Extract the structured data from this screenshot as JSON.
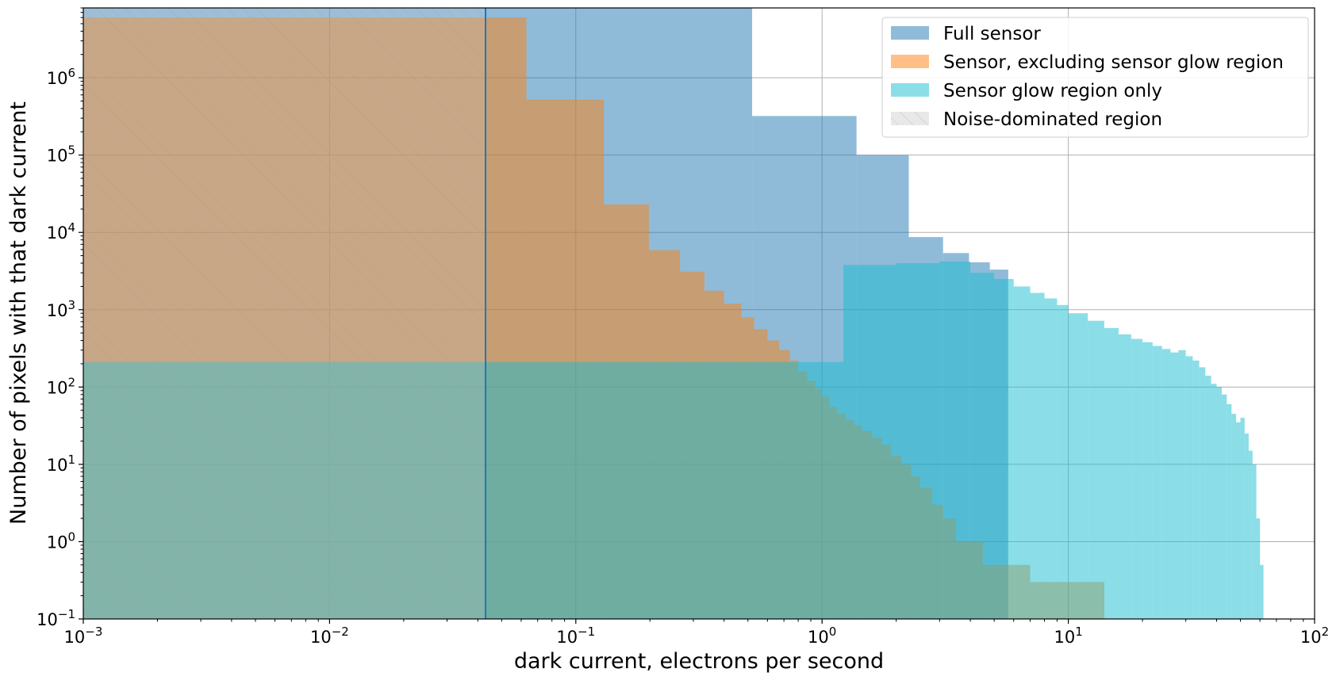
{
  "chart_data": {
    "type": "histogram",
    "x_scale": "log",
    "y_scale": "log",
    "xlim": [
      0.001,
      100
    ],
    "ylim": [
      0.1,
      8000000
    ],
    "xlabel": "dark current, electrons per second",
    "ylabel": "Number of pixels with that dark current",
    "grid": true,
    "legend_position": "top-right",
    "x_ticks": [
      {
        "value": 0.001,
        "base": "10",
        "exp": "−3"
      },
      {
        "value": 0.01,
        "base": "10",
        "exp": "−2"
      },
      {
        "value": 0.1,
        "base": "10",
        "exp": "−1"
      },
      {
        "value": 1,
        "base": "10",
        "exp": "0"
      },
      {
        "value": 10,
        "base": "10",
        "exp": "1"
      },
      {
        "value": 100,
        "base": "10",
        "exp": "2"
      }
    ],
    "y_ticks": [
      {
        "value": 0.1,
        "base": "10",
        "exp": "−1"
      },
      {
        "value": 1,
        "base": "10",
        "exp": "0"
      },
      {
        "value": 10,
        "base": "10",
        "exp": "1"
      },
      {
        "value": 100,
        "base": "10",
        "exp": "2"
      },
      {
        "value": 1000,
        "base": "10",
        "exp": "3"
      },
      {
        "value": 10000,
        "base": "10",
        "exp": "4"
      },
      {
        "value": 100000,
        "base": "10",
        "exp": "5"
      },
      {
        "value": 1000000,
        "base": "10",
        "exp": "6"
      }
    ],
    "threshold_line_x": 0.043,
    "series": [
      {
        "name": "Full sensor",
        "color": "#1f77b4",
        "opacity": 0.5,
        "bins": [
          {
            "x0": 0.001,
            "x1": 0.52,
            "y": 8000000
          },
          {
            "x0": 0.52,
            "x1": 1.38,
            "y": 320000
          },
          {
            "x0": 1.38,
            "x1": 2.25,
            "y": 100000
          },
          {
            "x0": 2.25,
            "x1": 3.1,
            "y": 8700
          },
          {
            "x0": 3.1,
            "x1": 3.95,
            "y": 5400
          },
          {
            "x0": 3.95,
            "x1": 4.8,
            "y": 4100
          },
          {
            "x0": 4.8,
            "x1": 5.7,
            "y": 3300
          }
        ]
      },
      {
        "name": "Sensor, excluding sensor glow region",
        "color": "#ff7f0e",
        "opacity": 0.5,
        "bins": [
          {
            "x0": 0.001,
            "x1": 0.063,
            "y": 6000000
          },
          {
            "x0": 0.063,
            "x1": 0.13,
            "y": 520000
          },
          {
            "x0": 0.13,
            "x1": 0.198,
            "y": 23000
          },
          {
            "x0": 0.198,
            "x1": 0.265,
            "y": 5900
          },
          {
            "x0": 0.265,
            "x1": 0.333,
            "y": 3100
          },
          {
            "x0": 0.333,
            "x1": 0.4,
            "y": 1760
          },
          {
            "x0": 0.4,
            "x1": 0.47,
            "y": 1200
          },
          {
            "x0": 0.47,
            "x1": 0.53,
            "y": 800
          },
          {
            "x0": 0.53,
            "x1": 0.6,
            "y": 560
          },
          {
            "x0": 0.6,
            "x1": 0.67,
            "y": 400
          },
          {
            "x0": 0.67,
            "x1": 0.74,
            "y": 300
          },
          {
            "x0": 0.74,
            "x1": 0.8,
            "y": 220
          },
          {
            "x0": 0.8,
            "x1": 0.87,
            "y": 160
          },
          {
            "x0": 0.87,
            "x1": 0.94,
            "y": 120
          },
          {
            "x0": 0.94,
            "x1": 1.0,
            "y": 95
          },
          {
            "x0": 1.0,
            "x1": 1.07,
            "y": 75
          },
          {
            "x0": 1.07,
            "x1": 1.15,
            "y": 55
          },
          {
            "x0": 1.15,
            "x1": 1.25,
            "y": 45
          },
          {
            "x0": 1.25,
            "x1": 1.35,
            "y": 38
          },
          {
            "x0": 1.35,
            "x1": 1.45,
            "y": 32
          },
          {
            "x0": 1.45,
            "x1": 1.6,
            "y": 27
          },
          {
            "x0": 1.6,
            "x1": 1.75,
            "y": 22
          },
          {
            "x0": 1.75,
            "x1": 1.9,
            "y": 18
          },
          {
            "x0": 1.9,
            "x1": 2.1,
            "y": 13
          },
          {
            "x0": 2.1,
            "x1": 2.3,
            "y": 10
          },
          {
            "x0": 2.3,
            "x1": 2.5,
            "y": 7
          },
          {
            "x0": 2.5,
            "x1": 2.8,
            "y": 5
          },
          {
            "x0": 2.8,
            "x1": 3.1,
            "y": 3
          },
          {
            "x0": 3.1,
            "x1": 3.5,
            "y": 2
          },
          {
            "x0": 3.5,
            "x1": 4.5,
            "y": 1
          },
          {
            "x0": 4.5,
            "x1": 7.0,
            "y": 0.5
          },
          {
            "x0": 7.0,
            "x1": 14.0,
            "y": 0.3
          }
        ]
      },
      {
        "name": "Sensor glow region only",
        "color": "#17becf",
        "opacity": 0.5,
        "bins": [
          {
            "x0": 0.001,
            "x1": 1.22,
            "y": 210
          },
          {
            "x0": 1.22,
            "x1": 2.0,
            "y": 3800
          },
          {
            "x0": 2.0,
            "x1": 3.0,
            "y": 4000
          },
          {
            "x0": 3.0,
            "x1": 4.0,
            "y": 4200
          },
          {
            "x0": 4.0,
            "x1": 5.0,
            "y": 3000
          },
          {
            "x0": 5.0,
            "x1": 6.0,
            "y": 2500
          },
          {
            "x0": 6.0,
            "x1": 7.0,
            "y": 2000
          },
          {
            "x0": 7.0,
            "x1": 8.0,
            "y": 1650
          },
          {
            "x0": 8.0,
            "x1": 9.0,
            "y": 1400
          },
          {
            "x0": 9.0,
            "x1": 10.0,
            "y": 1150
          },
          {
            "x0": 10.0,
            "x1": 12.0,
            "y": 900
          },
          {
            "x0": 12.0,
            "x1": 14.0,
            "y": 720
          },
          {
            "x0": 14.0,
            "x1": 16.0,
            "y": 580
          },
          {
            "x0": 16.0,
            "x1": 18.0,
            "y": 480
          },
          {
            "x0": 18.0,
            "x1": 20.0,
            "y": 420
          },
          {
            "x0": 20.0,
            "x1": 22.0,
            "y": 380
          },
          {
            "x0": 22.0,
            "x1": 24.0,
            "y": 340
          },
          {
            "x0": 24.0,
            "x1": 26.0,
            "y": 310
          },
          {
            "x0": 26.0,
            "x1": 28.0,
            "y": 280
          },
          {
            "x0": 28.0,
            "x1": 30.0,
            "y": 300
          },
          {
            "x0": 30.0,
            "x1": 32.0,
            "y": 250
          },
          {
            "x0": 32.0,
            "x1": 34.0,
            "y": 220
          },
          {
            "x0": 34.0,
            "x1": 36.0,
            "y": 180
          },
          {
            "x0": 36.0,
            "x1": 38.0,
            "y": 140
          },
          {
            "x0": 38.0,
            "x1": 40.0,
            "y": 110
          },
          {
            "x0": 40.0,
            "x1": 42.0,
            "y": 100
          },
          {
            "x0": 42.0,
            "x1": 44.0,
            "y": 80
          },
          {
            "x0": 44.0,
            "x1": 46.0,
            "y": 60
          },
          {
            "x0": 46.0,
            "x1": 48.0,
            "y": 45
          },
          {
            "x0": 48.0,
            "x1": 50.0,
            "y": 35
          },
          {
            "x0": 50.0,
            "x1": 52.0,
            "y": 40
          },
          {
            "x0": 52.0,
            "x1": 54.0,
            "y": 25
          },
          {
            "x0": 54.0,
            "x1": 56.0,
            "y": 15
          },
          {
            "x0": 56.0,
            "x1": 58.0,
            "y": 10
          },
          {
            "x0": 58.0,
            "x1": 60.0,
            "y": 2
          },
          {
            "x0": 60.0,
            "x1": 62.0,
            "y": 0.5
          }
        ]
      }
    ],
    "noise_region": {
      "name": "Noise-dominated region",
      "x0": 0.001,
      "x1": 0.043,
      "color": "#cccccc"
    }
  }
}
